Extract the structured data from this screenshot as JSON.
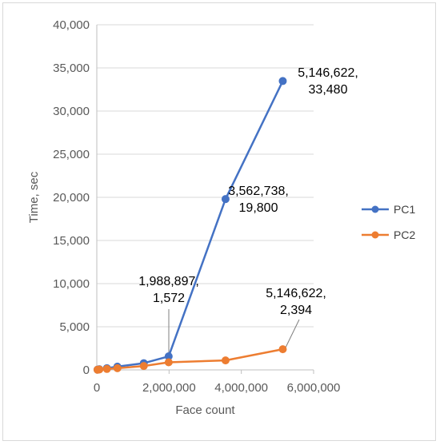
{
  "chart_data": {
    "type": "scatter",
    "title": "",
    "xlabel": "Face count",
    "ylabel": "Time, sec",
    "xlim": [
      0,
      6000000
    ],
    "ylim": [
      0,
      40000
    ],
    "x_ticks": [
      0,
      2000000,
      4000000,
      6000000
    ],
    "x_tick_labels": [
      "0",
      "2,000,000",
      "4,000,000",
      "6,000,000"
    ],
    "y_ticks": [
      0,
      5000,
      10000,
      15000,
      20000,
      25000,
      30000,
      35000,
      40000
    ],
    "y_tick_labels": [
      "0",
      "5,000",
      "10,000",
      "15,000",
      "20,000",
      "25,000",
      "30,000",
      "35,000",
      "40,000"
    ],
    "grid": "horizontal",
    "legend_position": "right",
    "series": [
      {
        "name": "PC1",
        "color": "#4472c4",
        "points": [
          [
            20000,
            30
          ],
          [
            70000,
            80
          ],
          [
            280000,
            200
          ],
          [
            570000,
            380
          ],
          [
            1300000,
            780
          ],
          [
            1988897,
            1572
          ],
          [
            3562738,
            19800
          ],
          [
            5146622,
            33480
          ]
        ]
      },
      {
        "name": "PC2",
        "color": "#ed7d31",
        "points": [
          [
            20000,
            20
          ],
          [
            70000,
            50
          ],
          [
            280000,
            110
          ],
          [
            570000,
            200
          ],
          [
            1300000,
            450
          ],
          [
            1988897,
            880
          ],
          [
            3562738,
            1100
          ],
          [
            5146622,
            2394
          ]
        ]
      }
    ],
    "annotations": [
      {
        "series": "PC1",
        "point": [
          5146622,
          33480
        ],
        "lines": [
          "5,146,622,",
          "33,480"
        ]
      },
      {
        "series": "PC1",
        "point": [
          3562738,
          19800
        ],
        "lines": [
          "3,562,738,",
          "19,800"
        ]
      },
      {
        "series": "PC1",
        "point": [
          1988897,
          1572
        ],
        "lines": [
          "1,988,897,",
          "1,572"
        ]
      },
      {
        "series": "PC2",
        "point": [
          5146622,
          2394
        ],
        "lines": [
          "5,146,622,",
          "2,394"
        ]
      }
    ]
  }
}
